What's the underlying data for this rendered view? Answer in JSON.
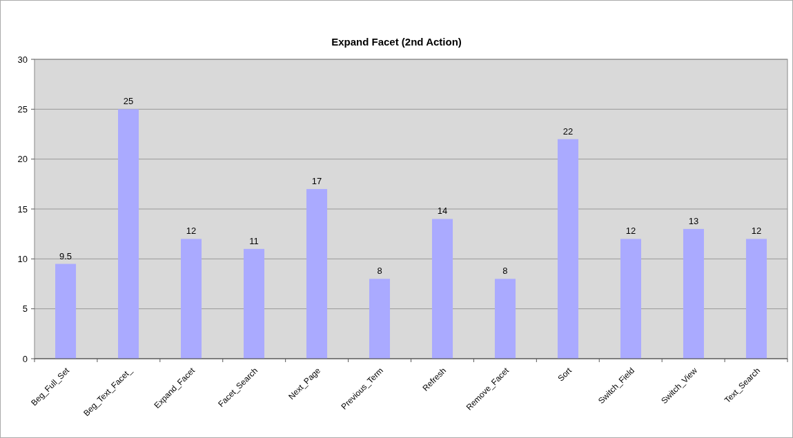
{
  "chart_data": {
    "type": "bar",
    "title": "Expand Facet (2nd Action)",
    "categories": [
      "Beg_Full_Set",
      "Beg_Text_Facet_",
      "Expand_Facet",
      "Facet_Search",
      "Next_Page",
      "Previous_Term",
      "Refresh",
      "Remove_Facet",
      "Sort",
      "Switch_Field",
      "Switch_View",
      "Text_Search"
    ],
    "values": [
      9.5,
      25,
      12,
      11,
      17,
      8,
      14,
      8,
      22,
      12,
      13,
      12
    ],
    "color": "#aaaaff",
    "ylim": [
      0,
      30
    ],
    "yticks": [
      0,
      5,
      10,
      15,
      20,
      25,
      30
    ],
    "grid": "y",
    "data_labels": true
  }
}
